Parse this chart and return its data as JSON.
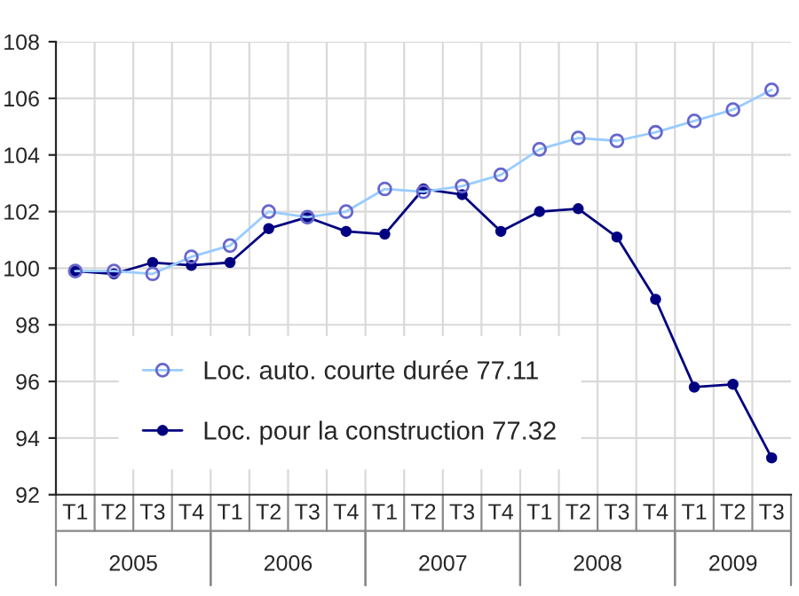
{
  "chart_data": {
    "type": "line",
    "categories": [
      "T1",
      "T2",
      "T3",
      "T4",
      "T1",
      "T2",
      "T3",
      "T4",
      "T1",
      "T2",
      "T3",
      "T4",
      "T1",
      "T2",
      "T3",
      "T4",
      "T1",
      "T2",
      "T3"
    ],
    "series": [
      {
        "name": "Loc. auto. courte durée 77.11",
        "color": "#99ccff",
        "values": [
          99.9,
          99.9,
          99.8,
          100.4,
          100.8,
          102.0,
          101.8,
          102.0,
          102.8,
          102.7,
          102.9,
          103.3,
          104.2,
          104.6,
          104.5,
          104.8,
          105.2,
          105.6,
          106.3
        ]
      },
      {
        "name": "Loc. pour la construction 77.32",
        "color": "#000080",
        "values": [
          99.9,
          99.8,
          100.2,
          100.1,
          100.2,
          101.4,
          101.8,
          101.3,
          101.2,
          102.8,
          102.6,
          101.3,
          102.0,
          102.1,
          101.1,
          98.9,
          95.8,
          95.9,
          93.3
        ]
      }
    ],
    "ylim": [
      92,
      108
    ],
    "yticks": [
      92,
      94,
      96,
      98,
      100,
      102,
      104,
      106,
      108
    ],
    "annotations": [
      "2005",
      "2006",
      "2007",
      "2008",
      "2009"
    ],
    "grid": true,
    "legend": "bottom",
    "marker": "circle",
    "line_style": "solid"
  }
}
